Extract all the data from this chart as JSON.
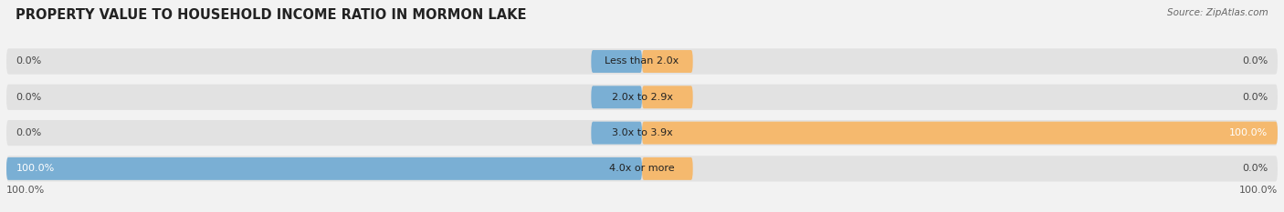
{
  "title": "PROPERTY VALUE TO HOUSEHOLD INCOME RATIO IN MORMON LAKE",
  "source": "Source: ZipAtlas.com",
  "categories": [
    "Less than 2.0x",
    "2.0x to 2.9x",
    "3.0x to 3.9x",
    "4.0x or more"
  ],
  "without_mortgage": [
    0.0,
    0.0,
    0.0,
    100.0
  ],
  "with_mortgage": [
    0.0,
    0.0,
    100.0,
    0.0
  ],
  "color_without": "#7aafd4",
  "color_with": "#f5b96e",
  "color_bg_bar": "#e2e2e2",
  "color_bg_small": "#c8d8e8",
  "color_bg_small_right": "#e8d8c0",
  "bar_height": 0.72,
  "xlim": 100,
  "bg_color": "#f2f2f2",
  "title_fontsize": 10.5,
  "label_fontsize": 8,
  "category_fontsize": 8,
  "legend_fontsize": 8.5
}
